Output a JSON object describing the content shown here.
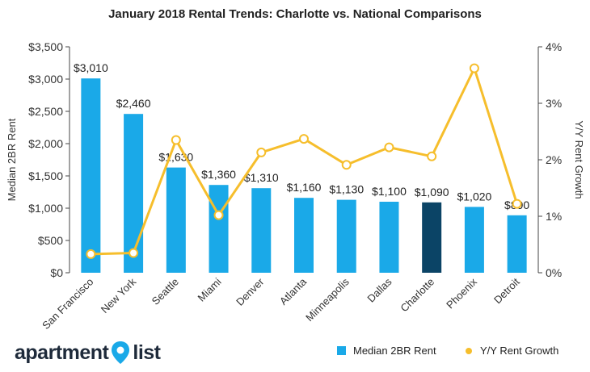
{
  "chart_data": {
    "type": "bar",
    "title": "January 2018 Rental Trends: Charlotte vs. National Comparisons",
    "categories": [
      "San Francisco",
      "New York",
      "Seattle",
      "Miami",
      "Denver",
      "Atlanta",
      "Minneapolis",
      "Dallas",
      "Charlotte",
      "Phoenix",
      "Detroit"
    ],
    "series": [
      {
        "name": "Median 2BR Rent",
        "kind": "bar",
        "axis": "left",
        "values": [
          3010,
          2460,
          1630,
          1360,
          1310,
          1160,
          1130,
          1100,
          1090,
          1020,
          890
        ],
        "labels": [
          "$3,010",
          "$2,460",
          "$1,630",
          "$1,360",
          "$1,310",
          "$1,160",
          "$1,130",
          "$1,100",
          "$1,090",
          "$1,020",
          "$890"
        ],
        "color": "#1aa9e8",
        "highlight_index": 8,
        "highlight_color": "#0b4466"
      },
      {
        "name": "Y/Y Rent Growth",
        "kind": "line",
        "axis": "right",
        "values": [
          0.33,
          0.35,
          2.35,
          1.02,
          2.13,
          2.37,
          1.91,
          2.22,
          2.06,
          3.62,
          1.22
        ],
        "color": "#f6be2c"
      }
    ],
    "ylabel": "Median 2BR Rent",
    "y2label": "Y/Y Rent Growth",
    "ylim": [
      0,
      3500
    ],
    "y2lim": [
      0,
      4
    ],
    "yticks": [
      "$0",
      "$500",
      "$1,000",
      "$1,500",
      "$2,000",
      "$2,500",
      "$3,000",
      "$3,500"
    ],
    "ytick_values": [
      0,
      500,
      1000,
      1500,
      2000,
      2500,
      3000,
      3500
    ],
    "y2ticks": [
      "0%",
      "1%",
      "2%",
      "3%",
      "4%"
    ],
    "y2tick_values": [
      0,
      1,
      2,
      3,
      4
    ],
    "legend_position": "bottom-right",
    "grid": false
  },
  "brand": {
    "left": "apartment",
    "right": "list",
    "text_color": "#1e2a3a",
    "pin_color": "#1aa9e8"
  }
}
